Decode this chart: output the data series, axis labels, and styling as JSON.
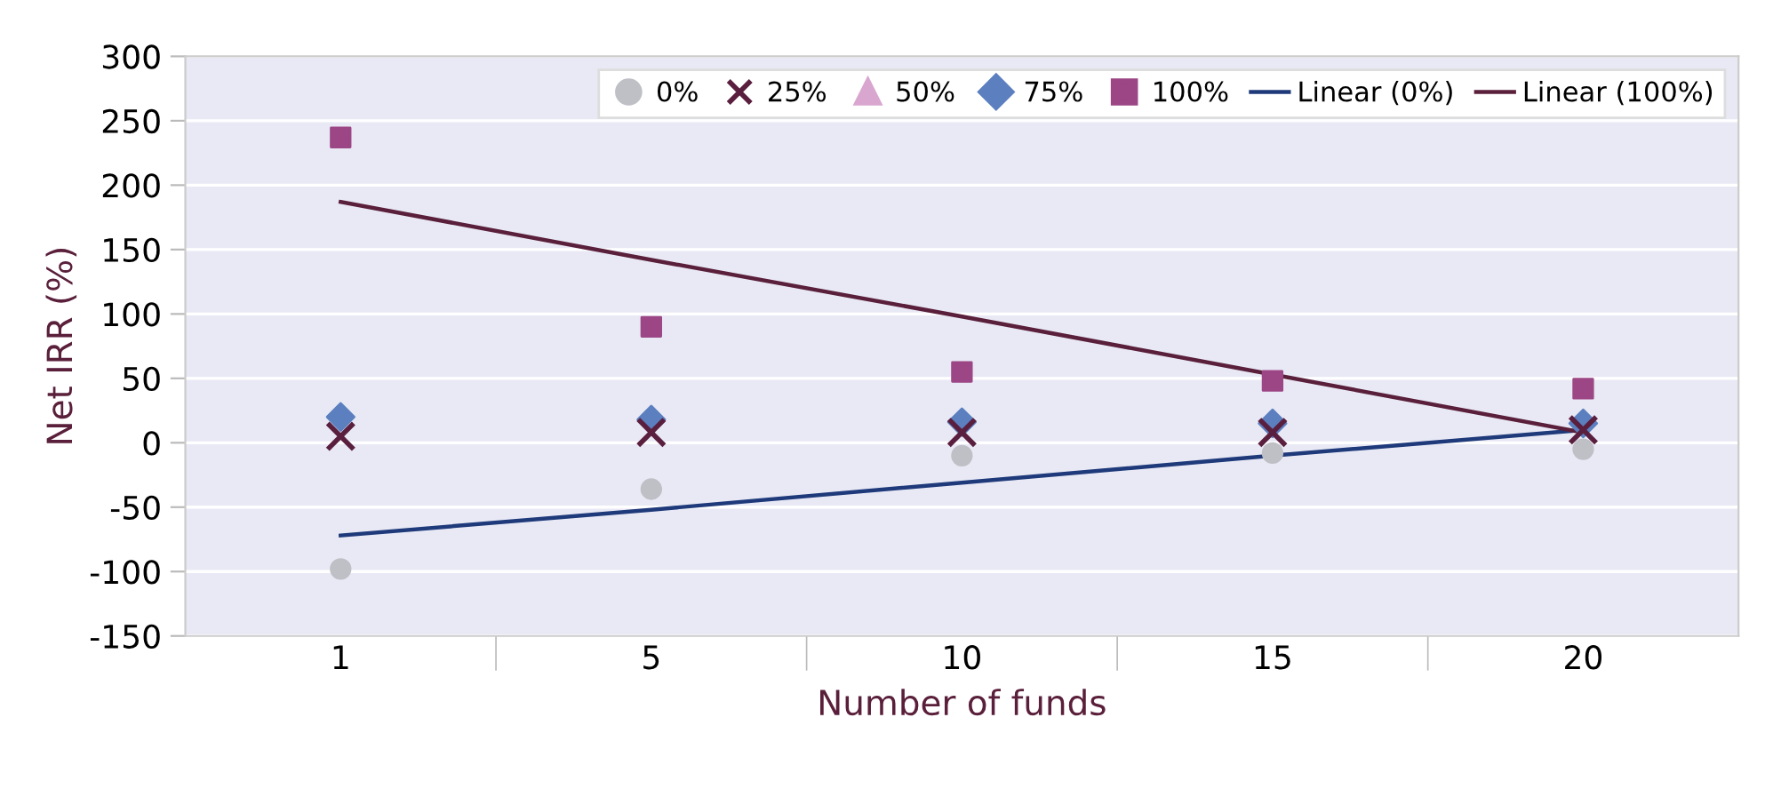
{
  "chart_data": {
    "type": "scatter",
    "xlabel": "Number of funds",
    "ylabel": "Net IRR (%)",
    "categories": [
      "1",
      "5",
      "10",
      "15",
      "20"
    ],
    "series": [
      {
        "name": "0%",
        "color": "#bfc0c6",
        "marker": "circle",
        "values": [
          -98,
          -36,
          -10,
          -8,
          -5
        ]
      },
      {
        "name": "25%",
        "color": "#5a1f3f",
        "marker": "cross",
        "values": [
          5,
          8,
          8,
          8,
          10
        ]
      },
      {
        "name": "50%",
        "color": "#d9a6d0",
        "marker": "triangle",
        "values": [
          null,
          null,
          null,
          null,
          null
        ]
      },
      {
        "name": "75%",
        "color": "#5b7fbf",
        "marker": "diamond",
        "values": [
          20,
          18,
          16,
          15,
          15
        ]
      },
      {
        "name": "100%",
        "color": "#9c4685",
        "marker": "square",
        "values": [
          237,
          90,
          55,
          48,
          42
        ]
      },
      {
        "name": "Linear (0%)",
        "type": "line",
        "color": "#1f3a7a",
        "marker": "none",
        "values": [
          -72,
          -52,
          -31,
          -10,
          10
        ]
      },
      {
        "name": "Linear (100%)",
        "type": "line",
        "color": "#5a1f3a",
        "marker": "none",
        "values": [
          187,
          142,
          98,
          53,
          8
        ]
      }
    ],
    "ylim": [
      -150,
      300
    ],
    "yticks": [
      -150,
      -100,
      -50,
      0,
      50,
      100,
      150,
      200,
      250,
      300
    ],
    "grid": "y",
    "legend": "top right"
  }
}
